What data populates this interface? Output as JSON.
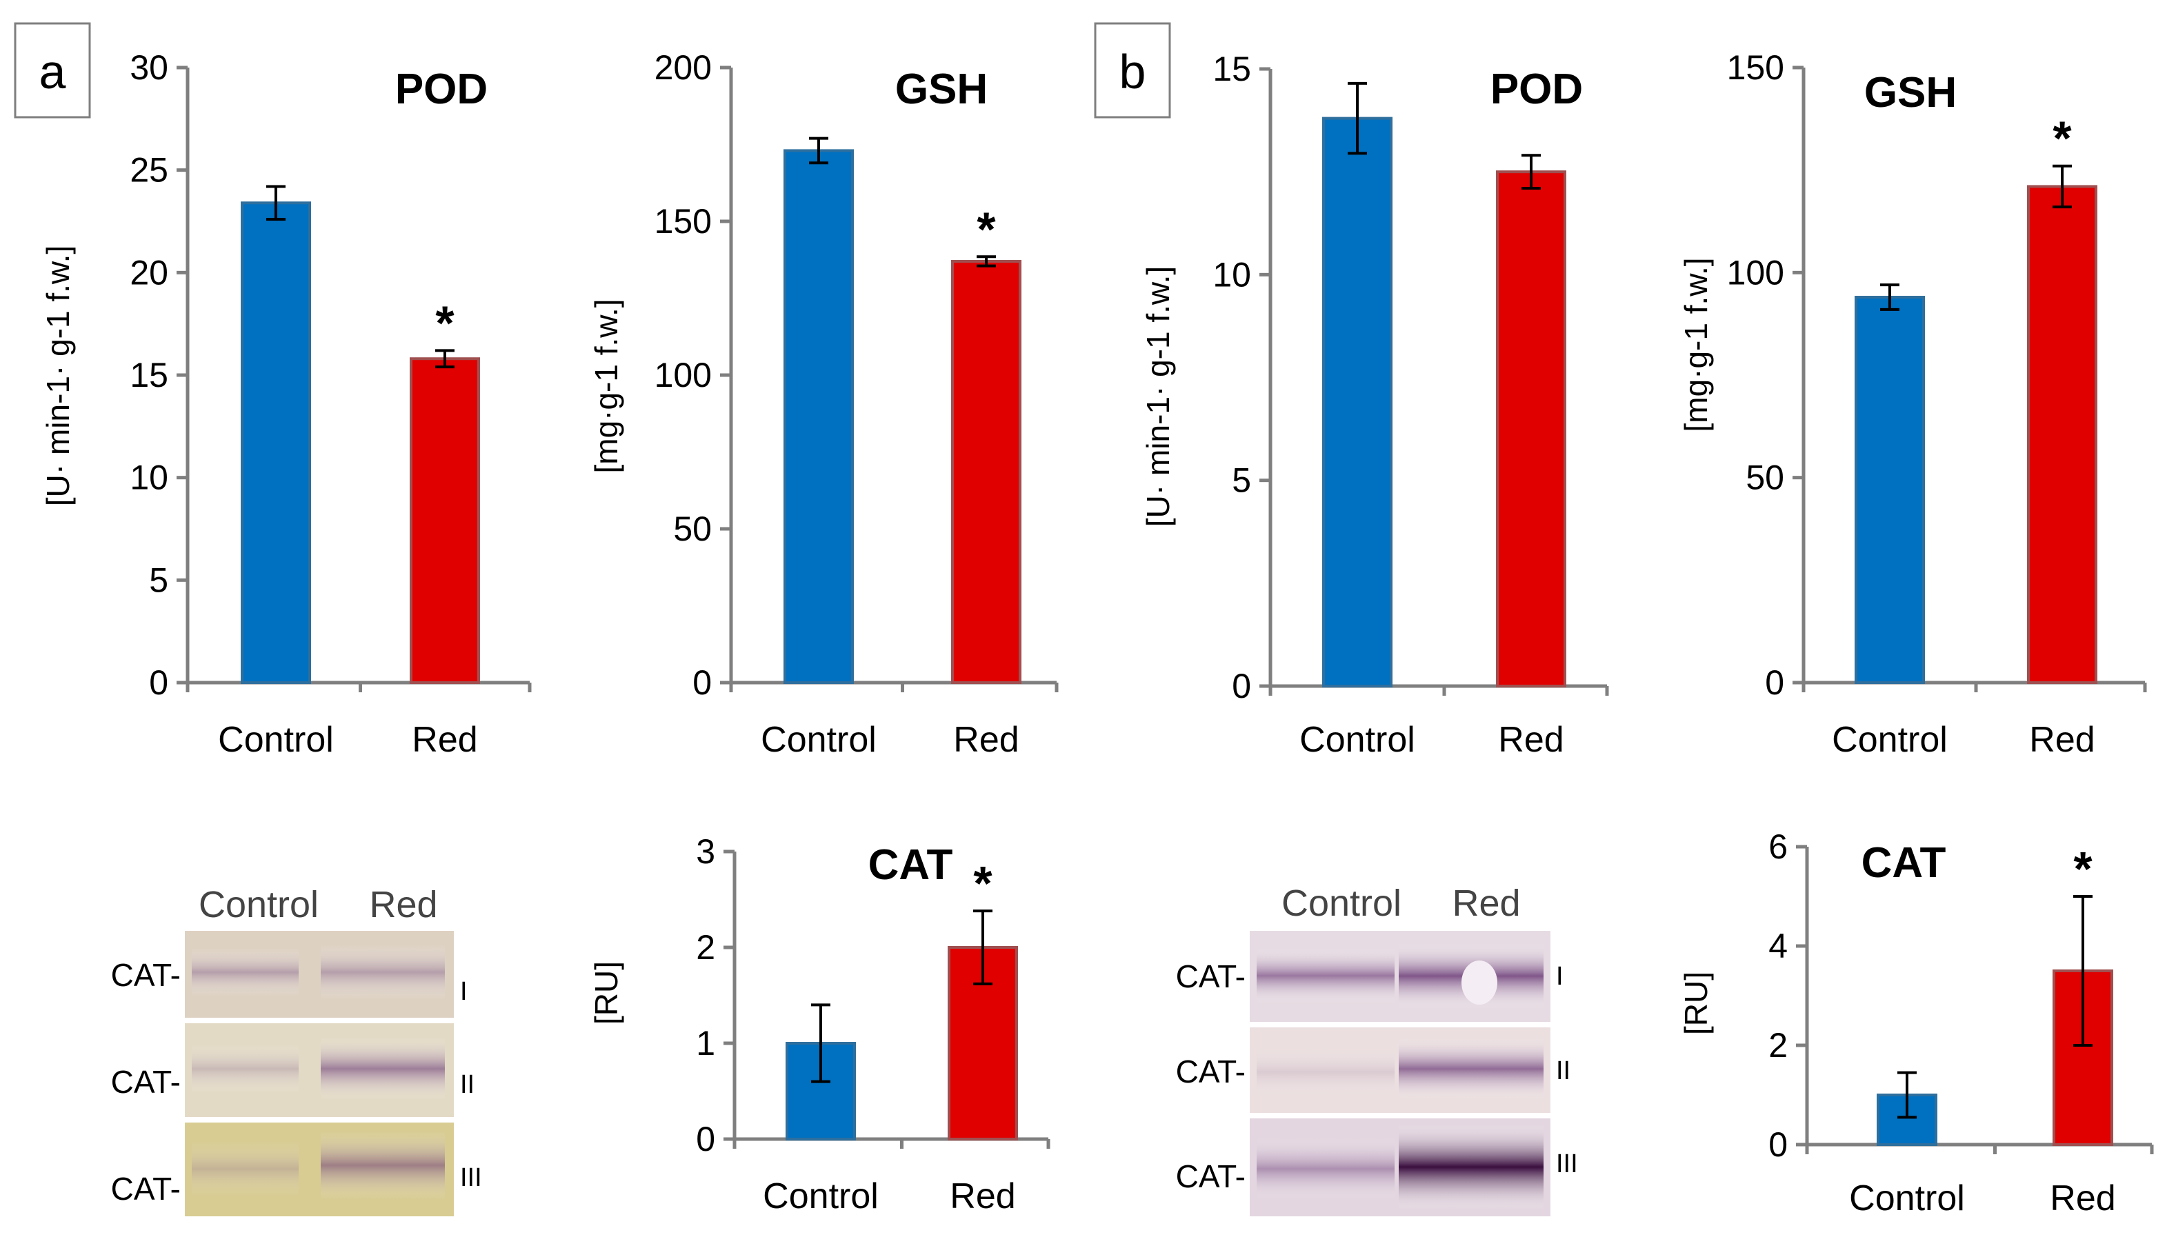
{
  "panels": [
    "a",
    "b"
  ],
  "colors": {
    "control": "#0070c0",
    "red": "#e00000",
    "control_edge": "#2e6f9e",
    "red_edge": "#a05050"
  },
  "chart_data": [
    {
      "id": "a-pod",
      "panel": "a",
      "type": "bar",
      "title": "POD",
      "ylabel": "[U· min-1· g-1 f.w.]",
      "ylim": [
        0,
        30
      ],
      "yticks": [
        0,
        5,
        10,
        15,
        20,
        25,
        30
      ],
      "categories": [
        "Control",
        "Red"
      ],
      "values": [
        23.4,
        15.8
      ],
      "errors": [
        0.8,
        0.4
      ],
      "significant": [
        false,
        true
      ],
      "star": "*"
    },
    {
      "id": "a-gsh",
      "panel": "a",
      "type": "bar",
      "title": "GSH",
      "ylabel": "[mg·g-1 f.w.]",
      "ylim": [
        0,
        200
      ],
      "yticks": [
        0,
        50,
        100,
        150,
        200
      ],
      "categories": [
        "Control",
        "Red"
      ],
      "values": [
        173,
        137
      ],
      "errors": [
        4,
        1.5
      ],
      "significant": [
        false,
        true
      ],
      "star": "*"
    },
    {
      "id": "a-cat",
      "panel": "a",
      "type": "bar",
      "title": "CAT",
      "ylabel": "[RU]",
      "ylim": [
        0,
        3
      ],
      "yticks": [
        0,
        1,
        2,
        3
      ],
      "categories": [
        "Control",
        "Red"
      ],
      "values": [
        1.0,
        2.0
      ],
      "errors": [
        0.4,
        0.38
      ],
      "significant": [
        false,
        true
      ],
      "star": "*"
    },
    {
      "id": "b-pod",
      "panel": "b",
      "type": "bar",
      "title": "POD",
      "ylabel": "[U· min-1· g-1 f.w.]",
      "ylim": [
        0,
        15
      ],
      "yticks": [
        0,
        5,
        10,
        15
      ],
      "categories": [
        "Control",
        "Red"
      ],
      "values": [
        13.8,
        12.5
      ],
      "errors": [
        0.85,
        0.4
      ],
      "significant": [
        false,
        false
      ],
      "star": "*"
    },
    {
      "id": "b-gsh",
      "panel": "b",
      "type": "bar",
      "title": "GSH",
      "ylabel": "[mg·g-1 f.w.]",
      "ylim": [
        0,
        150
      ],
      "yticks": [
        0,
        50,
        100,
        150
      ],
      "categories": [
        "Control",
        "Red"
      ],
      "values": [
        94,
        121
      ],
      "errors": [
        3,
        5
      ],
      "significant": [
        false,
        true
      ],
      "star": "*"
    },
    {
      "id": "b-cat",
      "panel": "b",
      "type": "bar",
      "title": "CAT",
      "ylabel": "[RU]",
      "ylim": [
        0,
        6
      ],
      "yticks": [
        0,
        2,
        4,
        6
      ],
      "categories": [
        "Control",
        "Red"
      ],
      "values": [
        1.0,
        3.5
      ],
      "errors": [
        0.45,
        1.5
      ],
      "significant": [
        false,
        true
      ],
      "star": "*"
    }
  ],
  "blots": [
    {
      "panel": "a",
      "headers": [
        "Control",
        "Red"
      ],
      "row_label": "CAT-",
      "rows": [
        "I",
        "II",
        "III"
      ]
    },
    {
      "panel": "b",
      "headers": [
        "Control",
        "Red"
      ],
      "row_label": "CAT-",
      "rows": [
        "I",
        "II",
        "III"
      ]
    }
  ]
}
